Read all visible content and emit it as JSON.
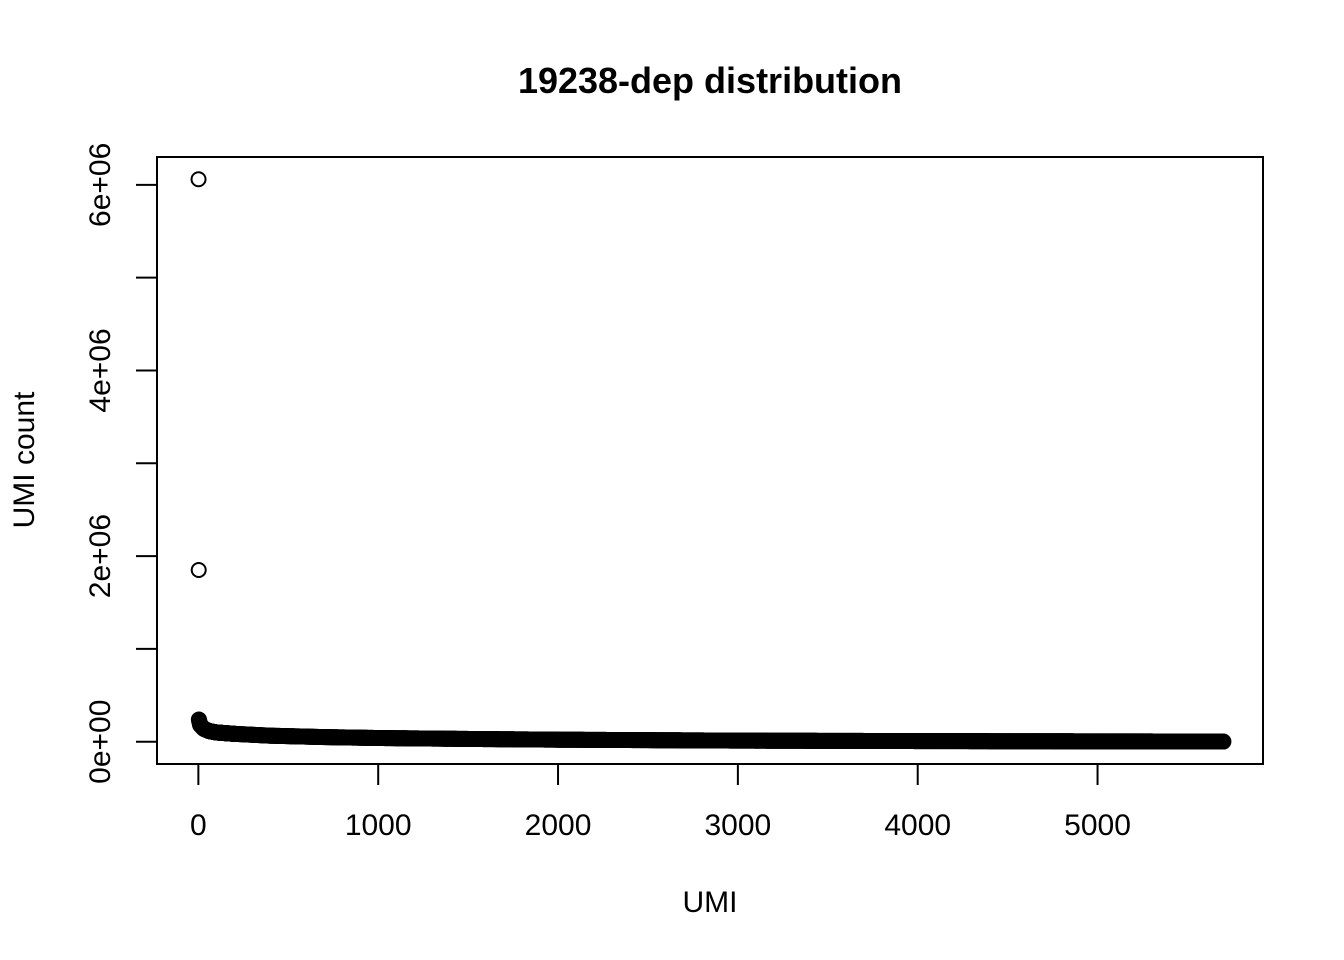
{
  "chart_data": {
    "type": "scatter",
    "title": "19238-dep distribution",
    "xlabel": "UMI",
    "ylabel": "UMI count",
    "xlim": [
      -230,
      5920
    ],
    "ylim": [
      -240000,
      6300000
    ],
    "x_ticks": [
      0,
      1000,
      2000,
      3000,
      4000,
      5000
    ],
    "x_tick_labels": [
      "0",
      "1000",
      "2000",
      "3000",
      "4000",
      "5000"
    ],
    "y_ticks": [
      0,
      1000000,
      2000000,
      3000000,
      4000000,
      5000000,
      6000000
    ],
    "y_tick_labels": [
      "0e+00",
      "",
      "2e+06",
      "",
      "4e+06",
      "",
      "6e+06"
    ],
    "n_points": 5700,
    "outliers": [
      {
        "x": 1,
        "y": 6060000
      },
      {
        "x": 2,
        "y": 1850000
      }
    ],
    "curve": {
      "description_points": [
        [
          3,
          240000
        ],
        [
          10,
          180000
        ],
        [
          30,
          140000
        ],
        [
          60,
          115000
        ],
        [
          100,
          100000
        ],
        [
          200,
          85000
        ],
        [
          400,
          65000
        ],
        [
          700,
          50000
        ],
        [
          1000,
          40000
        ],
        [
          1500,
          30000
        ],
        [
          2000,
          22000
        ],
        [
          3000,
          12000
        ],
        [
          4000,
          7000
        ],
        [
          5000,
          4000
        ],
        [
          5700,
          2000
        ]
      ]
    },
    "grid": false,
    "legend": "none"
  }
}
